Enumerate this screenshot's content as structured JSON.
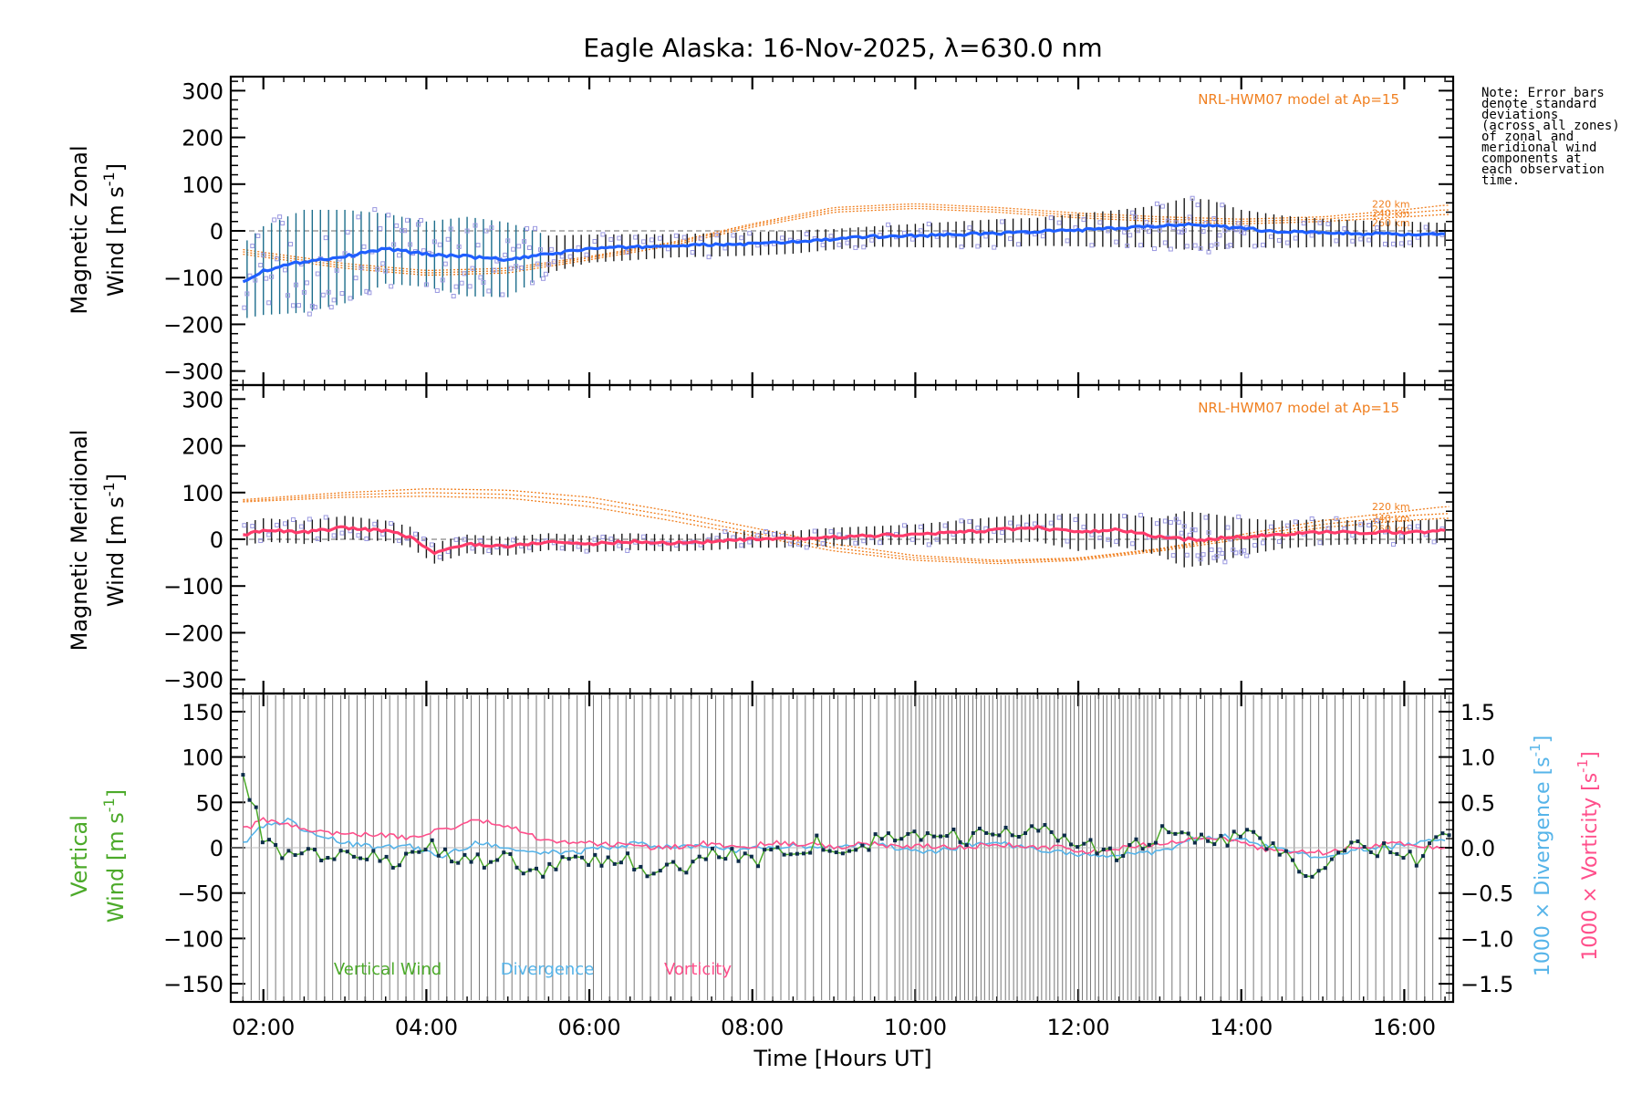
{
  "title": "Eagle Alaska: 16-Nov-2025, λ=630.0 nm",
  "note": [
    "Note: Error bars",
    "denote standard",
    "deviations",
    "(across all zones)",
    "of zonal and",
    "meridional wind",
    "components at",
    "each observation",
    "time."
  ],
  "colors": {
    "zonal": "#1f5fff",
    "meridional": "#ff3b6b",
    "model": "#f07f1f",
    "vertical": "#4caa2a",
    "divergence": "#56b4e9",
    "vorticity": "#ff4f8b",
    "zone_points": "#9a98e0",
    "errorbar": "#1a1a1a"
  },
  "chart_data": [
    {
      "type": "line",
      "name": "zonal",
      "ylabel_line1": "Magnetic Zonal",
      "ylabel_line2": "Wind [m s",
      "ylabel_sup": "-1",
      "ylabel_end": "]",
      "ylim": [
        -330,
        330
      ],
      "yticks": [
        300,
        200,
        100,
        0,
        -100,
        -200,
        -300
      ],
      "ytick_labels": [
        "300",
        "200",
        "100",
        "0",
        "−100",
        "−200",
        "−300"
      ],
      "model_label": "NRL-HWM07 model at Ap=15",
      "model_alt_labels": [
        "220 km",
        "240 km",
        "260 km"
      ],
      "model_alt_label_y": [
        58,
        38,
        18
      ],
      "x": [
        1.75,
        2.0,
        2.5,
        3.0,
        3.5,
        4.0,
        4.5,
        5.0,
        5.5,
        6.0,
        6.5,
        7.0,
        7.5,
        8.0,
        8.5,
        9.0,
        9.5,
        10.0,
        10.5,
        11.0,
        11.5,
        12.0,
        12.5,
        13.0,
        13.3,
        13.6,
        14.0,
        14.5,
        15.0,
        15.5,
        16.0,
        16.5
      ],
      "values": [
        -108,
        -85,
        -65,
        -55,
        -38,
        -50,
        -55,
        -62,
        -50,
        -38,
        -35,
        -32,
        -30,
        -28,
        -24,
        -18,
        -12,
        -10,
        -8,
        -5,
        -2,
        2,
        5,
        10,
        15,
        12,
        5,
        -2,
        -4,
        -6,
        -8,
        -8
      ],
      "errors": [
        80,
        95,
        110,
        100,
        75,
        70,
        85,
        80,
        40,
        30,
        28,
        25,
        25,
        25,
        25,
        22,
        22,
        25,
        28,
        30,
        30,
        35,
        40,
        45,
        55,
        55,
        40,
        35,
        30,
        28,
        28,
        25
      ],
      "model_series": [
        {
          "name": "220 km",
          "x": [
            1.75,
            3.0,
            4.0,
            5.0,
            6.0,
            7.0,
            8.0,
            9.0,
            10.0,
            11.0,
            12.0,
            13.0,
            14.0,
            15.0,
            16.0,
            16.5
          ],
          "values": [
            -40,
            -70,
            -85,
            -80,
            -55,
            -25,
            15,
            50,
            58,
            50,
            38,
            30,
            25,
            30,
            45,
            55
          ]
        },
        {
          "name": "240 km",
          "x": [
            1.75,
            3.0,
            4.0,
            5.0,
            6.0,
            7.0,
            8.0,
            9.0,
            10.0,
            11.0,
            12.0,
            13.0,
            14.0,
            15.0,
            16.0,
            16.5
          ],
          "values": [
            -45,
            -75,
            -90,
            -85,
            -58,
            -28,
            12,
            45,
            53,
            45,
            33,
            25,
            20,
            25,
            38,
            45
          ]
        },
        {
          "name": "260 km",
          "x": [
            1.75,
            3.0,
            4.0,
            5.0,
            6.0,
            7.0,
            8.0,
            9.0,
            10.0,
            11.0,
            12.0,
            13.0,
            14.0,
            15.0,
            16.0,
            16.5
          ],
          "values": [
            -50,
            -80,
            -95,
            -90,
            -62,
            -32,
            8,
            40,
            48,
            40,
            28,
            20,
            15,
            20,
            30,
            35
          ]
        }
      ]
    },
    {
      "type": "line",
      "name": "meridional",
      "ylabel_line1": "Magnetic Meridional",
      "ylabel_line2": "Wind [m s",
      "ylabel_sup": "-1",
      "ylabel_end": "]",
      "ylim": [
        -330,
        330
      ],
      "yticks": [
        300,
        200,
        100,
        0,
        -100,
        -200,
        -300
      ],
      "ytick_labels": [
        "300",
        "200",
        "100",
        "0",
        "−100",
        "−200",
        "−300"
      ],
      "model_label": "NRL-HWM07 model at Ap=15",
      "model_alt_labels": [
        "220 km",
        "240 km",
        "260 km"
      ],
      "model_alt_label_y": [
        70,
        45,
        22
      ],
      "x": [
        1.75,
        2.0,
        2.5,
        3.0,
        3.5,
        3.8,
        4.1,
        4.5,
        5.0,
        5.5,
        6.0,
        6.5,
        7.0,
        7.5,
        8.0,
        8.5,
        9.0,
        9.5,
        10.0,
        10.5,
        11.0,
        11.5,
        12.0,
        12.5,
        13.0,
        13.3,
        13.6,
        14.0,
        14.5,
        15.0,
        15.5,
        16.0,
        16.5
      ],
      "values": [
        10,
        20,
        15,
        25,
        18,
        5,
        -30,
        -10,
        -15,
        -5,
        -10,
        -5,
        -8,
        -5,
        0,
        0,
        5,
        8,
        10,
        15,
        20,
        25,
        15,
        20,
        5,
        0,
        0,
        5,
        10,
        15,
        15,
        15,
        18
      ],
      "errors": [
        25,
        25,
        25,
        25,
        22,
        22,
        22,
        20,
        20,
        18,
        18,
        18,
        18,
        18,
        18,
        18,
        20,
        20,
        22,
        25,
        28,
        30,
        40,
        35,
        40,
        60,
        55,
        40,
        30,
        28,
        25,
        25,
        25
      ],
      "model_series": [
        {
          "name": "220 km",
          "x": [
            1.75,
            3.0,
            4.0,
            5.0,
            6.0,
            7.0,
            8.0,
            9.0,
            10.0,
            11.0,
            12.0,
            13.0,
            14.0,
            15.0,
            16.0,
            16.5
          ],
          "values": [
            85,
            100,
            108,
            105,
            90,
            60,
            25,
            -10,
            -35,
            -45,
            -40,
            -20,
            10,
            40,
            60,
            70
          ]
        },
        {
          "name": "240 km",
          "x": [
            1.75,
            3.0,
            4.0,
            5.0,
            6.0,
            7.0,
            8.0,
            9.0,
            10.0,
            11.0,
            12.0,
            13.0,
            14.0,
            15.0,
            16.0,
            16.5
          ],
          "values": [
            82,
            95,
            100,
            96,
            80,
            50,
            15,
            -18,
            -40,
            -48,
            -42,
            -22,
            5,
            32,
            50,
            55
          ]
        },
        {
          "name": "260 km",
          "x": [
            1.75,
            3.0,
            4.0,
            5.0,
            6.0,
            7.0,
            8.0,
            9.0,
            10.0,
            11.0,
            12.0,
            13.0,
            14.0,
            15.0,
            16.0,
            16.5
          ],
          "values": [
            80,
            90,
            92,
            88,
            70,
            40,
            8,
            -25,
            -45,
            -52,
            -45,
            -25,
            0,
            25,
            40,
            45
          ]
        }
      ]
    },
    {
      "type": "line",
      "name": "vertical",
      "ylabel_line1": "Vertical",
      "ylabel_line2": "Wind [m s",
      "ylabel_sup": "-1",
      "ylabel_end": "]",
      "ylim": [
        -170,
        170
      ],
      "yticks": [
        150,
        100,
        50,
        0,
        -50,
        -100,
        -150
      ],
      "ytick_labels": [
        "150",
        "100",
        "50",
        "0",
        "−50",
        "−100",
        "−150"
      ],
      "y2lim": [
        -1.7,
        1.7
      ],
      "y2ticks": [
        1.5,
        1.0,
        0.5,
        0.0,
        -0.5,
        -1.0,
        -1.5
      ],
      "y2tick_labels": [
        "1.5",
        "1.0",
        "0.5",
        "0.0",
        "−0.5",
        "−1.0",
        "−1.5"
      ],
      "y2label_div": "1000 × Divergence [s",
      "y2label_vort": "1000 × Vorticity [s",
      "y2label_sup": "-1",
      "y2label_end": "]",
      "legend": [
        "Vertical Wind",
        "Divergence",
        "Vorticity"
      ],
      "vertical": {
        "x": [
          1.75,
          1.9,
          2.0,
          2.2,
          2.4,
          2.6,
          2.8,
          3.0,
          3.2,
          3.4,
          3.6,
          3.8,
          4.0,
          4.2,
          4.4,
          4.6,
          4.8,
          5.0,
          5.2,
          5.4,
          5.6,
          5.8,
          6.0,
          6.2,
          6.4,
          6.6,
          6.8,
          7.0,
          7.2,
          7.4,
          7.6,
          7.8,
          8.0,
          8.2,
          8.4,
          8.6,
          8.8,
          9.0,
          9.2,
          9.4,
          9.6,
          9.8,
          10.0,
          10.2,
          10.4,
          10.6,
          10.8,
          11.0,
          11.2,
          11.4,
          11.6,
          11.8,
          12.0,
          12.2,
          12.4,
          12.6,
          12.8,
          13.0,
          13.2,
          13.4,
          13.6,
          13.8,
          14.0,
          14.2,
          14.4,
          14.6,
          14.8,
          15.0,
          15.2,
          15.4,
          15.6,
          15.8,
          16.0,
          16.2,
          16.4,
          16.5
        ],
        "values": [
          80,
          45,
          5,
          -5,
          -15,
          -5,
          -10,
          -5,
          -15,
          -10,
          -20,
          -5,
          5,
          -10,
          -15,
          -5,
          -20,
          -10,
          -25,
          -30,
          -20,
          -15,
          -10,
          -15,
          -10,
          -20,
          -25,
          -15,
          -20,
          -15,
          -5,
          -10,
          -15,
          -5,
          0,
          0,
          5,
          0,
          3,
          5,
          8,
          10,
          10,
          15,
          20,
          10,
          15,
          20,
          10,
          15,
          20,
          10,
          5,
          0,
          -10,
          -5,
          5,
          15,
          20,
          10,
          10,
          5,
          15,
          10,
          0,
          -15,
          -30,
          -20,
          -5,
          5,
          0,
          -5,
          -15,
          -10,
          5,
          20
        ]
      },
      "divergence": {
        "x": [
          1.75,
          2.0,
          2.3,
          2.6,
          3.0,
          3.4,
          3.8,
          4.2,
          4.6,
          5.0,
          5.4,
          5.8,
          6.2,
          6.6,
          7.0,
          7.4,
          7.8,
          8.2,
          8.6,
          9.0,
          9.4,
          9.8,
          10.2,
          10.6,
          11.0,
          11.4,
          11.8,
          12.2,
          12.6,
          13.0,
          13.4,
          13.8,
          14.2,
          14.6,
          15.0,
          15.4,
          15.8,
          16.2,
          16.5
        ],
        "values": [
          0.05,
          0.25,
          0.3,
          0.15,
          0.05,
          0.0,
          0.02,
          -0.1,
          0.05,
          0.0,
          -0.05,
          -0.05,
          0.0,
          0.05,
          0.0,
          0.02,
          -0.03,
          0.0,
          0.02,
          0.0,
          0.05,
          0.0,
          -0.05,
          0.02,
          0.05,
          0.0,
          -0.05,
          -0.1,
          -0.08,
          -0.05,
          0.1,
          0.12,
          0.05,
          -0.05,
          -0.1,
          -0.02,
          0.0,
          0.05,
          0.1
        ]
      },
      "vorticity": {
        "x": [
          1.75,
          2.0,
          2.3,
          2.6,
          3.0,
          3.4,
          3.8,
          4.2,
          4.6,
          5.0,
          5.4,
          5.8,
          6.2,
          6.6,
          7.0,
          7.4,
          7.8,
          8.2,
          8.6,
          9.0,
          9.4,
          9.8,
          10.2,
          10.6,
          11.0,
          11.4,
          11.8,
          12.2,
          12.6,
          13.0,
          13.4,
          13.8,
          14.2,
          14.6,
          15.0,
          15.4,
          15.8,
          16.2,
          16.5
        ],
        "values": [
          0.2,
          0.3,
          0.25,
          0.2,
          0.15,
          0.15,
          0.1,
          0.2,
          0.3,
          0.25,
          0.1,
          0.05,
          0.05,
          0.0,
          0.0,
          0.05,
          0.0,
          0.05,
          0.05,
          0.0,
          0.05,
          0.0,
          0.02,
          0.0,
          0.05,
          0.0,
          0.0,
          -0.05,
          0.0,
          0.05,
          0.1,
          0.1,
          0.0,
          -0.05,
          -0.05,
          0.0,
          0.05,
          0.02,
          0.0
        ]
      }
    }
  ],
  "xaxis": {
    "xlim": [
      1.6,
      16.6
    ],
    "xticks": [
      2,
      4,
      6,
      8,
      10,
      12,
      14,
      16
    ],
    "xtick_labels": [
      "02:00",
      "04:00",
      "06:00",
      "08:00",
      "10:00",
      "12:00",
      "14:00",
      "16:00"
    ],
    "xlabel": "Time [Hours UT]"
  }
}
